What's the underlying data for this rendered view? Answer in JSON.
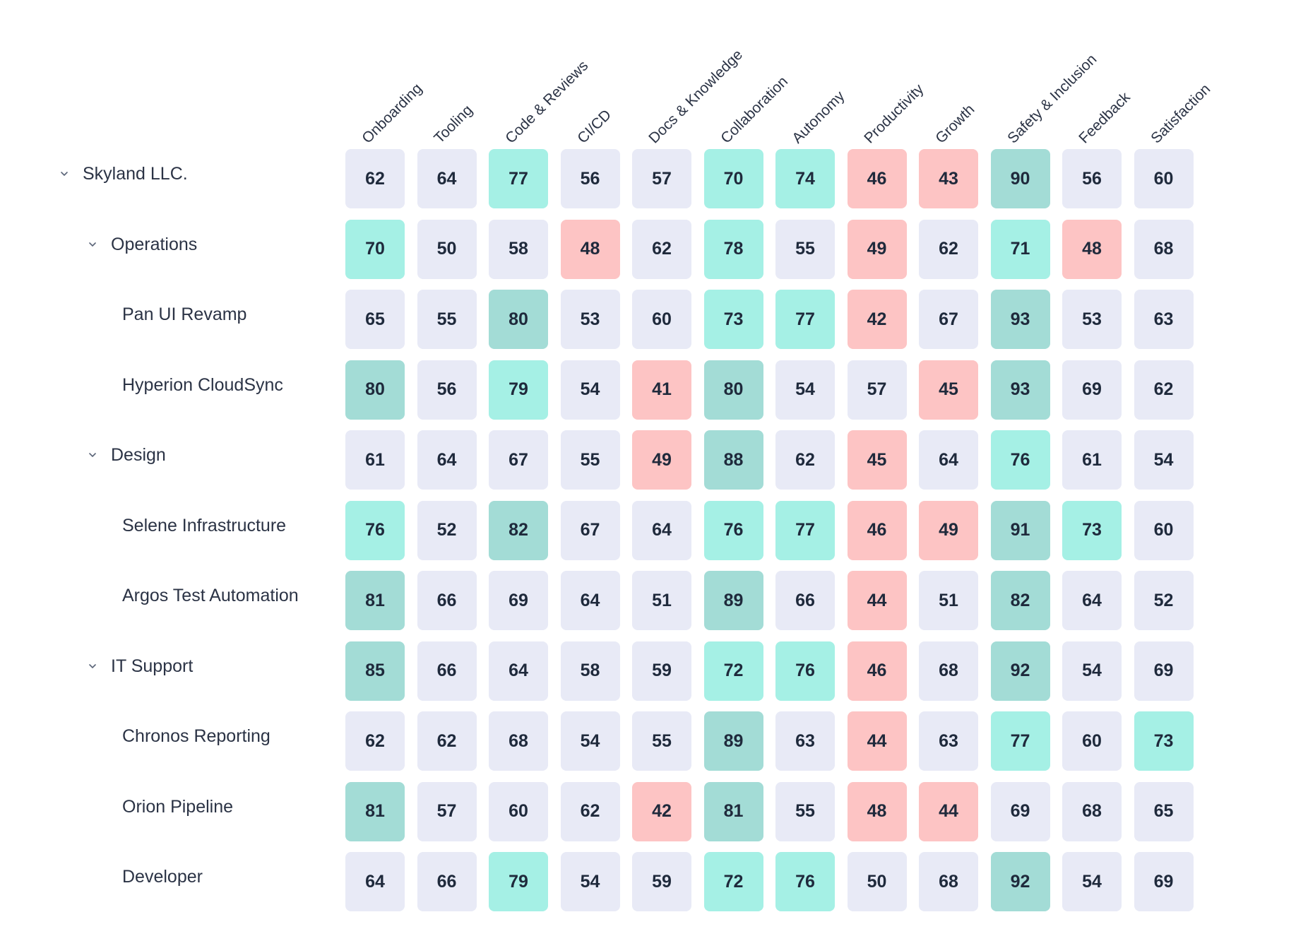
{
  "columns": [
    "Onboarding",
    "Tooling",
    "Code & Reviews",
    "CI/CD",
    "Docs & Knowledge",
    "Collaboration",
    "Autonomy",
    "Productivity",
    "Growth",
    "Safety & Inclusion",
    "Feedback",
    "Satisfaction"
  ],
  "colors": {
    "neutral": "#e8eaf6",
    "good": "#a5f0e5",
    "great": "#a3dcd6",
    "bad": "#fdc4c4",
    "text": "#2b3345"
  },
  "rows": [
    {
      "label": "Skyland LLC.",
      "level": 0,
      "collapsible": true,
      "values": [
        62,
        64,
        77,
        56,
        57,
        70,
        74,
        46,
        43,
        90,
        56,
        60
      ],
      "tones": [
        "neutral",
        "neutral",
        "good",
        "neutral",
        "neutral",
        "good",
        "good",
        "bad",
        "bad",
        "great",
        "neutral",
        "neutral"
      ]
    },
    {
      "label": "Operations",
      "level": 1,
      "collapsible": true,
      "values": [
        70,
        50,
        58,
        48,
        62,
        78,
        55,
        49,
        62,
        71,
        48,
        68
      ],
      "tones": [
        "good",
        "neutral",
        "neutral",
        "bad",
        "neutral",
        "good",
        "neutral",
        "bad",
        "neutral",
        "good",
        "bad",
        "neutral"
      ]
    },
    {
      "label": "Pan UI Revamp",
      "level": 2,
      "collapsible": false,
      "values": [
        65,
        55,
        80,
        53,
        60,
        73,
        77,
        42,
        67,
        93,
        53,
        63
      ],
      "tones": [
        "neutral",
        "neutral",
        "great",
        "neutral",
        "neutral",
        "good",
        "good",
        "bad",
        "neutral",
        "great",
        "neutral",
        "neutral"
      ]
    },
    {
      "label": "Hyperion CloudSync",
      "level": 2,
      "collapsible": false,
      "values": [
        80,
        56,
        79,
        54,
        41,
        80,
        54,
        57,
        45,
        93,
        69,
        62
      ],
      "tones": [
        "great",
        "neutral",
        "good",
        "neutral",
        "bad",
        "great",
        "neutral",
        "neutral",
        "bad",
        "great",
        "neutral",
        "neutral"
      ]
    },
    {
      "label": "Design",
      "level": 1,
      "collapsible": true,
      "values": [
        61,
        64,
        67,
        55,
        49,
        88,
        62,
        45,
        64,
        76,
        61,
        54
      ],
      "tones": [
        "neutral",
        "neutral",
        "neutral",
        "neutral",
        "bad",
        "great",
        "neutral",
        "bad",
        "neutral",
        "good",
        "neutral",
        "neutral"
      ]
    },
    {
      "label": "Selene Infrastructure",
      "level": 2,
      "collapsible": false,
      "values": [
        76,
        52,
        82,
        67,
        64,
        76,
        77,
        46,
        49,
        91,
        73,
        60
      ],
      "tones": [
        "good",
        "neutral",
        "great",
        "neutral",
        "neutral",
        "good",
        "good",
        "bad",
        "bad",
        "great",
        "good",
        "neutral"
      ]
    },
    {
      "label": "Argos Test Automation",
      "level": 2,
      "collapsible": false,
      "values": [
        81,
        66,
        69,
        64,
        51,
        89,
        66,
        44,
        51,
        82,
        64,
        52
      ],
      "tones": [
        "great",
        "neutral",
        "neutral",
        "neutral",
        "neutral",
        "great",
        "neutral",
        "bad",
        "neutral",
        "great",
        "neutral",
        "neutral"
      ]
    },
    {
      "label": "IT Support",
      "level": 1,
      "collapsible": true,
      "values": [
        85,
        66,
        64,
        58,
        59,
        72,
        76,
        46,
        68,
        92,
        54,
        69
      ],
      "tones": [
        "great",
        "neutral",
        "neutral",
        "neutral",
        "neutral",
        "good",
        "good",
        "bad",
        "neutral",
        "great",
        "neutral",
        "neutral"
      ]
    },
    {
      "label": "Chronos Reporting",
      "level": 2,
      "collapsible": false,
      "values": [
        62,
        62,
        68,
        54,
        55,
        89,
        63,
        44,
        63,
        77,
        60,
        73
      ],
      "tones": [
        "neutral",
        "neutral",
        "neutral",
        "neutral",
        "neutral",
        "great",
        "neutral",
        "bad",
        "neutral",
        "good",
        "neutral",
        "good"
      ]
    },
    {
      "label": "Orion Pipeline",
      "level": 2,
      "collapsible": false,
      "values": [
        81,
        57,
        60,
        62,
        42,
        81,
        55,
        48,
        44,
        69,
        68,
        65
      ],
      "tones": [
        "great",
        "neutral",
        "neutral",
        "neutral",
        "bad",
        "great",
        "neutral",
        "bad",
        "bad",
        "neutral",
        "neutral",
        "neutral"
      ]
    },
    {
      "label": "Developer",
      "level": 2,
      "collapsible": false,
      "values": [
        64,
        66,
        79,
        54,
        59,
        72,
        76,
        50,
        68,
        92,
        54,
        69
      ],
      "tones": [
        "neutral",
        "neutral",
        "good",
        "neutral",
        "neutral",
        "good",
        "good",
        "neutral",
        "neutral",
        "great",
        "neutral",
        "neutral"
      ]
    }
  ]
}
